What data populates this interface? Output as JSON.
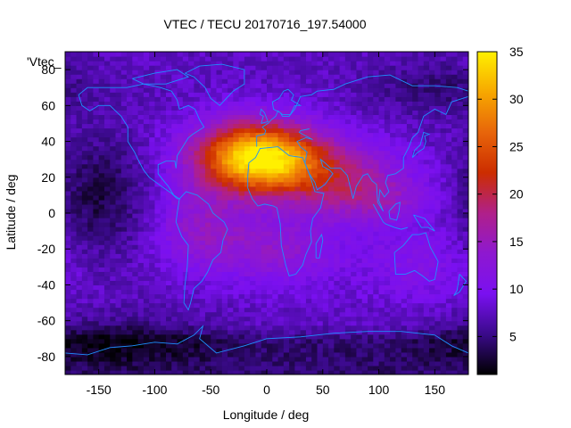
{
  "chart_data": {
    "type": "heatmap",
    "title": "VTEC / TECU 20170716_197.54000",
    "xlabel": "Longitude / deg",
    "ylabel": "Latitude / deg",
    "xlim": [
      -180,
      180
    ],
    "ylim": [
      -90,
      90
    ],
    "xticks": [
      -150,
      -100,
      -50,
      0,
      50,
      100,
      150
    ],
    "yticks": [
      -80,
      -60,
      -40,
      -20,
      0,
      20,
      40,
      60,
      80
    ],
    "colorbar": {
      "min": 1,
      "max": 35,
      "ticks": [
        5,
        10,
        15,
        20,
        25,
        30,
        35
      ]
    },
    "legend": {
      "entry": "'Vtec_",
      "position": "top-left"
    },
    "colormap": [
      "#000000",
      "#3a0a8a",
      "#7a10f0",
      "#8e18d0",
      "#b0208a",
      "#cc2d00",
      "#e8650a",
      "#f7a800",
      "#fff000"
    ],
    "coastline_color": "#1e90ff",
    "peak": {
      "lon": -10,
      "lat": 33,
      "value": 34
    }
  }
}
